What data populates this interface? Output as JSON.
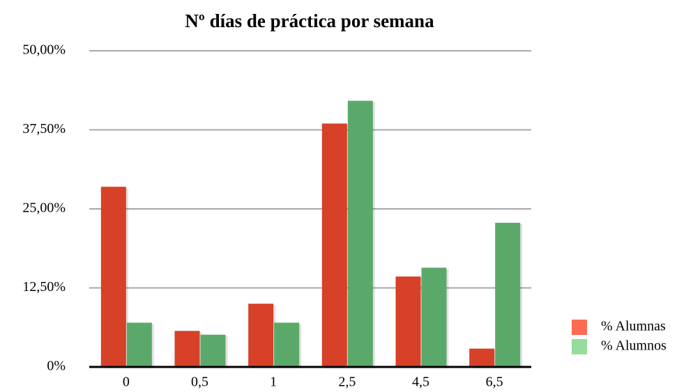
{
  "chart_data": {
    "type": "bar",
    "title": "Nº días de práctica por semana",
    "categories": [
      "0",
      "0,5",
      "1",
      "2,5",
      "4,5",
      "6,5"
    ],
    "series": [
      {
        "name": "% Alumnas",
        "color": "#d64127",
        "legend_color": "#ff6b52",
        "values": [
          28.5,
          5.7,
          10.0,
          38.5,
          14.3,
          2.9
        ]
      },
      {
        "name": "% Alumnos",
        "color": "#5aa96a",
        "legend_color": "#95dd9a",
        "values": [
          7.0,
          5.1,
          7.0,
          42.1,
          15.7,
          22.8
        ]
      }
    ],
    "ylim": [
      0,
      50
    ],
    "yticks": [
      {
        "value": 0,
        "label": "0%"
      },
      {
        "value": 12.5,
        "label": "12,50%"
      },
      {
        "value": 25,
        "label": "25,00%"
      },
      {
        "value": 37.5,
        "label": "37,50%"
      },
      {
        "value": 50,
        "label": "50,00%"
      }
    ],
    "grid": true,
    "legend": "right"
  }
}
